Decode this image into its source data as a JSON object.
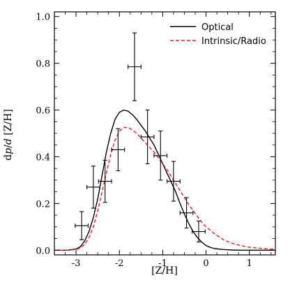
{
  "chart_data": {
    "type": "line",
    "xlabel": "[Z/H]",
    "ylabel": "d𝑝/𝑑 [Z/H]",
    "xlim": [
      -3.5,
      1.6
    ],
    "ylim": [
      -0.02,
      1.02
    ],
    "x_ticks": [
      -3,
      -2,
      -1,
      0,
      1
    ],
    "x_tick_labels": [
      "-3",
      "-2",
      "-1",
      "0",
      "1"
    ],
    "y_ticks": [
      0.0,
      0.2,
      0.4,
      0.6,
      0.8,
      1.0
    ],
    "y_tick_labels": [
      "0.0",
      "0.2",
      "0.4",
      "0.6",
      "0.8",
      "1.0"
    ],
    "legend_position": "top-right",
    "series": [
      {
        "name": "Optical",
        "style": "solid",
        "color": "#000000",
        "x": [
          -3.5,
          -3.2,
          -3.0,
          -2.9,
          -2.8,
          -2.7,
          -2.6,
          -2.5,
          -2.4,
          -2.3,
          -2.2,
          -2.1,
          -2.0,
          -1.9,
          -1.8,
          -1.7,
          -1.6,
          -1.5,
          -1.4,
          -1.3,
          -1.2,
          -1.1,
          -1.0,
          -0.9,
          -0.8,
          -0.7,
          -0.6,
          -0.5,
          -0.4,
          -0.3,
          -0.2,
          -0.1,
          0.0,
          0.1,
          0.2,
          0.4,
          0.6,
          0.8,
          1.0,
          1.3,
          1.6
        ],
        "y": [
          0.0,
          0.0,
          0.005,
          0.015,
          0.04,
          0.08,
          0.14,
          0.22,
          0.32,
          0.42,
          0.5,
          0.56,
          0.59,
          0.6,
          0.595,
          0.58,
          0.56,
          0.535,
          0.51,
          0.48,
          0.45,
          0.41,
          0.37,
          0.33,
          0.29,
          0.25,
          0.2,
          0.155,
          0.115,
          0.08,
          0.055,
          0.035,
          0.02,
          0.012,
          0.007,
          0.003,
          0.001,
          0.0,
          0.0,
          0.0,
          0.0
        ]
      },
      {
        "name": "Intrinsic/Radio",
        "style": "dashed",
        "color": "#e8202a",
        "x": [
          -3.5,
          -3.2,
          -3.0,
          -2.9,
          -2.8,
          -2.7,
          -2.6,
          -2.5,
          -2.4,
          -2.3,
          -2.2,
          -2.1,
          -2.0,
          -1.9,
          -1.8,
          -1.7,
          -1.6,
          -1.5,
          -1.4,
          -1.3,
          -1.2,
          -1.1,
          -1.0,
          -0.9,
          -0.8,
          -0.7,
          -0.6,
          -0.5,
          -0.4,
          -0.3,
          -0.2,
          -0.1,
          0.0,
          0.2,
          0.4,
          0.6,
          0.8,
          1.0,
          1.2,
          1.4,
          1.6
        ],
        "y": [
          0.0,
          0.0,
          0.003,
          0.01,
          0.025,
          0.055,
          0.1,
          0.17,
          0.25,
          0.33,
          0.41,
          0.47,
          0.51,
          0.525,
          0.525,
          0.515,
          0.5,
          0.48,
          0.46,
          0.44,
          0.42,
          0.395,
          0.37,
          0.345,
          0.315,
          0.285,
          0.255,
          0.225,
          0.195,
          0.17,
          0.145,
          0.12,
          0.1,
          0.07,
          0.045,
          0.03,
          0.02,
          0.013,
          0.009,
          0.006,
          0.004
        ]
      }
    ],
    "data_points": [
      {
        "x": -2.87,
        "xerr": 0.15,
        "y": 0.105,
        "yerr": 0.06
      },
      {
        "x": -2.6,
        "xerr": 0.15,
        "y": 0.27,
        "yerr": 0.09
      },
      {
        "x": -2.33,
        "xerr": 0.15,
        "y": 0.295,
        "yerr": 0.09
      },
      {
        "x": -2.03,
        "xerr": 0.15,
        "y": 0.43,
        "yerr": 0.09
      },
      {
        "x": -1.65,
        "xerr": 0.15,
        "y": 0.785,
        "yerr": 0.145
      },
      {
        "x": -1.35,
        "xerr": 0.15,
        "y": 0.485,
        "yerr": 0.115
      },
      {
        "x": -1.05,
        "xerr": 0.15,
        "y": 0.405,
        "yerr": 0.105
      },
      {
        "x": -0.75,
        "xerr": 0.15,
        "y": 0.295,
        "yerr": 0.085
      },
      {
        "x": -0.45,
        "xerr": 0.15,
        "y": 0.16,
        "yerr": 0.065
      },
      {
        "x": -0.17,
        "xerr": 0.15,
        "y": 0.08,
        "yerr": 0.045
      }
    ]
  }
}
